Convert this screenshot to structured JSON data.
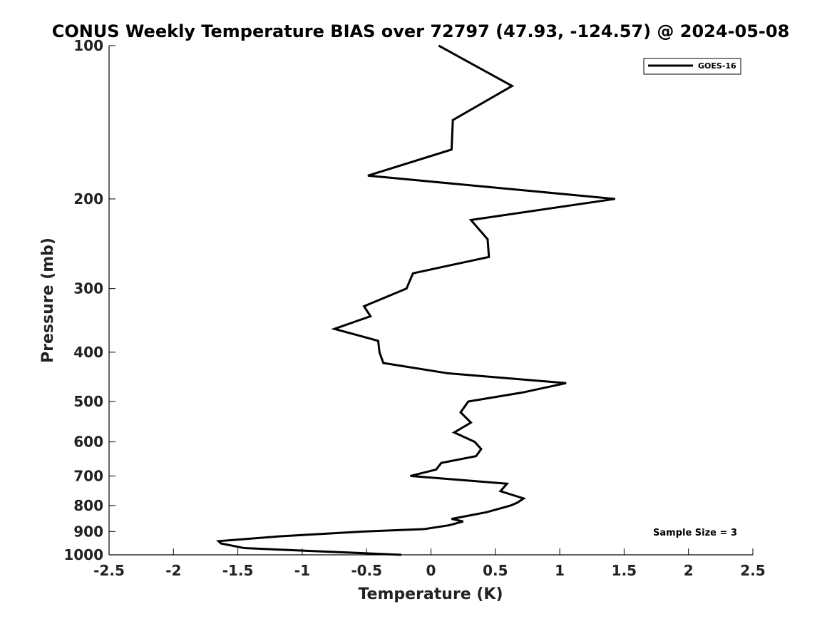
{
  "chart_data": {
    "type": "line",
    "title": "CONUS Weekly Temperature BIAS over 72797 (47.93, -124.57) @ 2024-05-08",
    "xlabel": "Temperature (K)",
    "ylabel": "Pressure (mb)",
    "xlim": [
      -2.5,
      2.5
    ],
    "ylim": [
      100,
      1000
    ],
    "y_scale": "log",
    "y_reversed": true,
    "grid": false,
    "legend_position": "top-right",
    "x_ticks": [
      -2.5,
      -2,
      -1.5,
      -1,
      -0.5,
      0,
      0.5,
      1,
      1.5,
      2,
      2.5
    ],
    "x_tick_labels": [
      "-2.5",
      "-2",
      "-1.5",
      "-1",
      "-0.5",
      "0",
      "0.5",
      "1",
      "1.5",
      "2",
      "2.5"
    ],
    "y_ticks": [
      100,
      200,
      300,
      400,
      500,
      600,
      700,
      800,
      900,
      1000
    ],
    "y_tick_labels": [
      "100",
      "200",
      "300",
      "400",
      "500",
      "600",
      "700",
      "800",
      "900",
      "1000"
    ],
    "series": [
      {
        "name": "GOES-16",
        "color": "#000000",
        "points": [
          {
            "x": 0.06,
            "p": 100
          },
          {
            "x": 0.63,
            "p": 120
          },
          {
            "x": 0.17,
            "p": 140
          },
          {
            "x": 0.16,
            "p": 160
          },
          {
            "x": -0.49,
            "p": 180
          },
          {
            "x": 1.43,
            "p": 200
          },
          {
            "x": 0.31,
            "p": 220
          },
          {
            "x": 0.44,
            "p": 240
          },
          {
            "x": 0.45,
            "p": 260
          },
          {
            "x": -0.14,
            "p": 280
          },
          {
            "x": -0.19,
            "p": 300
          },
          {
            "x": -0.52,
            "p": 325
          },
          {
            "x": -0.47,
            "p": 340
          },
          {
            "x": -0.75,
            "p": 360
          },
          {
            "x": -0.41,
            "p": 380
          },
          {
            "x": -0.4,
            "p": 400
          },
          {
            "x": -0.37,
            "p": 420
          },
          {
            "x": 0.13,
            "p": 440
          },
          {
            "x": 1.05,
            "p": 460
          },
          {
            "x": 0.71,
            "p": 480
          },
          {
            "x": 0.29,
            "p": 500
          },
          {
            "x": 0.23,
            "p": 525
          },
          {
            "x": 0.31,
            "p": 550
          },
          {
            "x": 0.18,
            "p": 575
          },
          {
            "x": 0.34,
            "p": 600
          },
          {
            "x": 0.39,
            "p": 620
          },
          {
            "x": 0.35,
            "p": 640
          },
          {
            "x": 0.08,
            "p": 660
          },
          {
            "x": 0.04,
            "p": 680
          },
          {
            "x": -0.16,
            "p": 700
          },
          {
            "x": 0.59,
            "p": 725
          },
          {
            "x": 0.54,
            "p": 750
          },
          {
            "x": 0.72,
            "p": 775
          },
          {
            "x": 0.67,
            "p": 790
          },
          {
            "x": 0.62,
            "p": 800
          },
          {
            "x": 0.43,
            "p": 825
          },
          {
            "x": 0.16,
            "p": 850
          },
          {
            "x": 0.25,
            "p": 860
          },
          {
            "x": 0.14,
            "p": 875
          },
          {
            "x": -0.05,
            "p": 890
          },
          {
            "x": -0.53,
            "p": 900
          },
          {
            "x": -1.18,
            "p": 920
          },
          {
            "x": -1.65,
            "p": 940
          },
          {
            "x": -1.63,
            "p": 950
          },
          {
            "x": -1.45,
            "p": 970
          },
          {
            "x": -0.23,
            "p": 1000
          }
        ]
      }
    ],
    "legend": [
      {
        "label": "GOES-16",
        "color": "#000000"
      }
    ],
    "annotations": [
      {
        "text": "Sample Size = 3",
        "position": "bottom-right"
      }
    ]
  }
}
